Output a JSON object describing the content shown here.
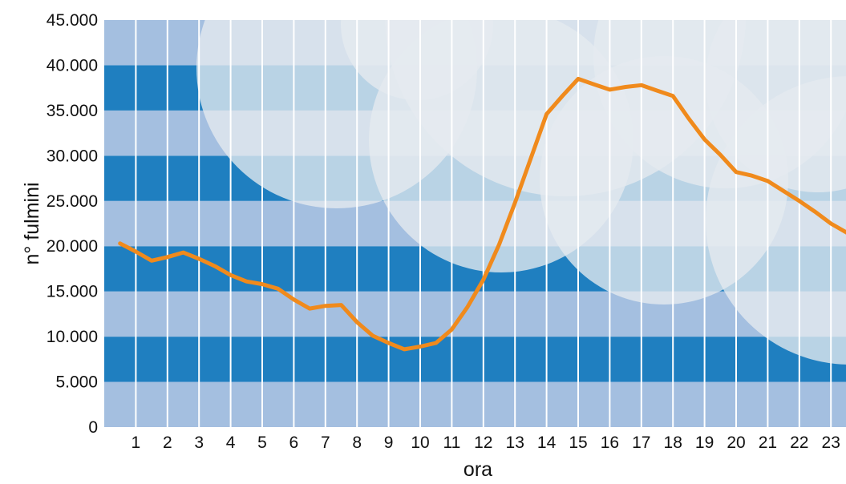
{
  "chart_data": {
    "type": "line",
    "xlabel": "ora",
    "ylabel": "n° fulmini",
    "ylim": [
      0,
      45000
    ],
    "xlim": [
      0,
      24
    ],
    "grid": "alternating horizontal bands with vertical hour gridlines",
    "y_ticks": [
      {
        "value": 0,
        "label": "0"
      },
      {
        "value": 5000,
        "label": "5.000"
      },
      {
        "value": 10000,
        "label": "10.000"
      },
      {
        "value": 15000,
        "label": "15.000"
      },
      {
        "value": 20000,
        "label": "20.000"
      },
      {
        "value": 25000,
        "label": "25.000"
      },
      {
        "value": 30000,
        "label": "30.000"
      },
      {
        "value": 35000,
        "label": "35.000"
      },
      {
        "value": 40000,
        "label": "40.000"
      },
      {
        "value": 45000,
        "label": "45.000"
      }
    ],
    "x_ticks": [
      {
        "value": 1,
        "label": "1"
      },
      {
        "value": 2,
        "label": "2"
      },
      {
        "value": 3,
        "label": "3"
      },
      {
        "value": 4,
        "label": "4"
      },
      {
        "value": 5,
        "label": "5"
      },
      {
        "value": 6,
        "label": "6"
      },
      {
        "value": 7,
        "label": "7"
      },
      {
        "value": 8,
        "label": "8"
      },
      {
        "value": 9,
        "label": "9"
      },
      {
        "value": 10,
        "label": "10"
      },
      {
        "value": 11,
        "label": "11"
      },
      {
        "value": 12,
        "label": "12"
      },
      {
        "value": 13,
        "label": "13"
      },
      {
        "value": 14,
        "label": "14"
      },
      {
        "value": 15,
        "label": "15"
      },
      {
        "value": 16,
        "label": "16"
      },
      {
        "value": 17,
        "label": "17"
      },
      {
        "value": 18,
        "label": "18"
      },
      {
        "value": 19,
        "label": "19"
      },
      {
        "value": 20,
        "label": "20"
      },
      {
        "value": 21,
        "label": "21"
      },
      {
        "value": 22,
        "label": "22"
      },
      {
        "value": 23,
        "label": "23"
      }
    ],
    "series": [
      {
        "color": "#f08a1c",
        "x": [
          0.5,
          1.0,
          1.5,
          2.0,
          2.5,
          3.0,
          3.5,
          4.0,
          4.5,
          5.0,
          5.5,
          6.0,
          6.5,
          7.0,
          7.5,
          8.0,
          8.5,
          9.0,
          9.5,
          10.0,
          10.5,
          11.0,
          11.5,
          12.0,
          12.5,
          13.0,
          13.5,
          14.0,
          14.5,
          15.0,
          15.5,
          16.0,
          16.5,
          17.0,
          17.5,
          18.0,
          18.5,
          19.0,
          19.5,
          20.0,
          20.5,
          21.0,
          21.5,
          22.0,
          22.5,
          23.0,
          23.5
        ],
        "values": [
          20300,
          19400,
          18400,
          18800,
          19300,
          18600,
          17800,
          16800,
          16100,
          15800,
          15300,
          14100,
          13100,
          13400,
          13500,
          11600,
          10100,
          9300,
          8600,
          8900,
          9300,
          10800,
          13300,
          16300,
          20200,
          24800,
          29700,
          34600,
          36600,
          38500,
          37900,
          37300,
          37600,
          37800,
          37200,
          36600,
          34100,
          31800,
          30100,
          28200,
          27800,
          27200,
          26100,
          25000,
          23800,
          22500,
          21500
        ]
      }
    ],
    "colors": {
      "band_dark": "#1f7fc0",
      "band_light": "#a4bfe0",
      "gridline": "#ffffff",
      "cloud": "#e6ebf0",
      "line": "#f08a1c"
    }
  }
}
